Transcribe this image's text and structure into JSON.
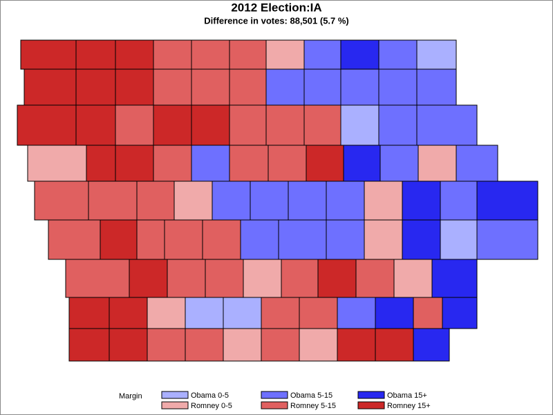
{
  "title": "2012 Election:IA",
  "subtitle": "Difference in votes: 88,501 (5.7 %)",
  "legend": {
    "title": "Margin",
    "items": [
      {
        "label": "Obama 0-5",
        "color": "#aab0ff"
      },
      {
        "label": "Obama 5-15",
        "color": "#6e70ff"
      },
      {
        "label": "Obama 15+",
        "color": "#2828f0"
      },
      {
        "label": "Romney 0-5",
        "color": "#f0aaaa"
      },
      {
        "label": "Romney 5-15",
        "color": "#e06060"
      },
      {
        "label": "Romney 15+",
        "color": "#cc2828"
      }
    ]
  }
}
